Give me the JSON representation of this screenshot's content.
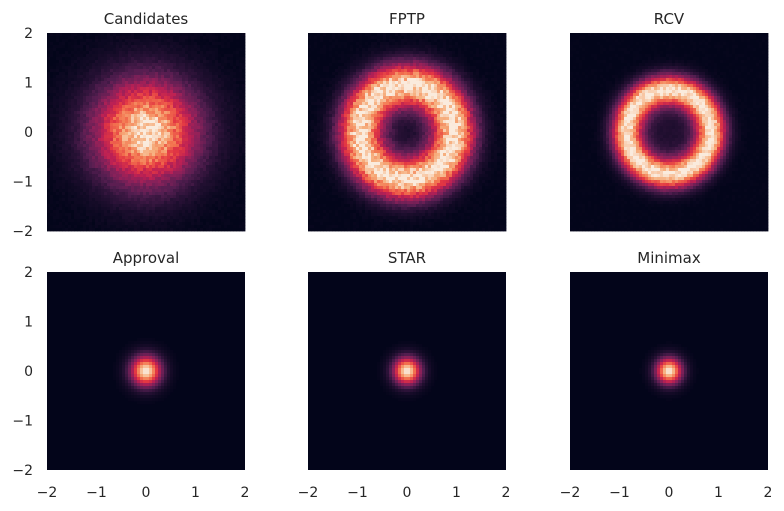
{
  "chart_data": {
    "type": "heatmap",
    "colormap": "rocket",
    "layout": {
      "rows": 2,
      "cols": 3,
      "sharex": true,
      "sharey": true
    },
    "x_range": [
      -2,
      2
    ],
    "y_range": [
      -2,
      2
    ],
    "x_ticks": [
      "−2",
      "−1",
      "0",
      "1",
      "2"
    ],
    "y_ticks": [
      "2",
      "1",
      "0",
      "−1",
      "−2"
    ],
    "grid": false,
    "panels": [
      {
        "title": "Candidates",
        "distribution": "gaussian",
        "center": [
          0,
          0
        ],
        "sigma": 0.75,
        "noise": 0.12
      },
      {
        "title": "FPTP",
        "distribution": "ring",
        "center": [
          0,
          0
        ],
        "ring_radius": 0.95,
        "ring_width": 0.52,
        "inner_floor": 0.08,
        "noise": 0.12
      },
      {
        "title": "RCV",
        "distribution": "ring",
        "center": [
          0,
          0
        ],
        "ring_radius": 0.85,
        "ring_width": 0.36,
        "inner_floor": 0.1,
        "noise": 0.08
      },
      {
        "title": "Approval",
        "distribution": "gaussian",
        "center": [
          0,
          0
        ],
        "sigma": 0.22,
        "noise": 0.0
      },
      {
        "title": "STAR",
        "distribution": "gaussian",
        "center": [
          0,
          0
        ],
        "sigma": 0.2,
        "noise": 0.0
      },
      {
        "title": "Minimax",
        "distribution": "gaussian",
        "center": [
          0,
          0
        ],
        "sigma": 0.19,
        "noise": 0.0
      }
    ]
  }
}
